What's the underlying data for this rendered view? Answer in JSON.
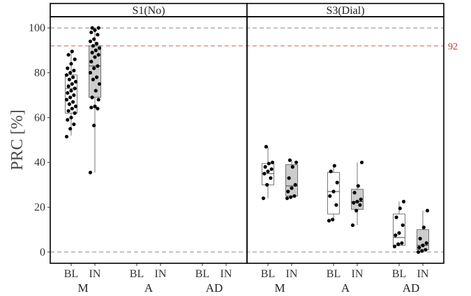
{
  "chart_data": {
    "type": "box",
    "ylabel": "PRC [%]",
    "ylim": [
      -5,
      105
    ],
    "yticks": [
      0,
      20,
      40,
      60,
      80,
      100
    ],
    "reference_lines": [
      {
        "value": 100,
        "style": "dashed",
        "color": "#888888"
      },
      {
        "value": 92,
        "style": "dashed",
        "color": "#d25a5a",
        "label": "92"
      },
      {
        "value": 0,
        "style": "dashed",
        "color": "#888888"
      }
    ],
    "conditions": [
      "BL",
      "IN"
    ],
    "groups": [
      "M",
      "A",
      "AD"
    ],
    "colors": {
      "BL": "#ffffff",
      "IN": "#cccccc",
      "accent": "#b23a3a"
    },
    "panels": [
      {
        "title": "S1(No)",
        "boxes": [
          {
            "group": "M",
            "condition": "BL",
            "whisker_low": 52,
            "q1": 62,
            "median": 73,
            "q3": 79,
            "whisker_high": 90,
            "points": [
              51.5,
              55,
              57,
              59,
              60,
              62,
              63,
              64,
              65,
              66,
              67,
              68,
              69,
              70,
              71,
              72,
              73,
              74,
              75,
              76,
              77,
              78,
              79,
              80,
              81,
              82,
              84,
              86,
              88,
              89.5
            ]
          },
          {
            "group": "M",
            "condition": "IN",
            "whisker_low": 35.5,
            "q1": 69,
            "median": 83,
            "q3": 92,
            "whisker_high": 100,
            "points": [
              35.5,
              56.5,
              64,
              64.5,
              65,
              68,
              69,
              72,
              75,
              77,
              78,
              80,
              82,
              83,
              85,
              87,
              88,
              89,
              90,
              91,
              92,
              93,
              94,
              95,
              97,
              98,
              99,
              100,
              100
            ]
          },
          {
            "group": "A",
            "condition": "BL",
            "points": []
          },
          {
            "group": "A",
            "condition": "IN",
            "points": []
          },
          {
            "group": "AD",
            "condition": "BL",
            "points": []
          },
          {
            "group": "AD",
            "condition": "IN",
            "points": []
          }
        ]
      },
      {
        "title": "S3(Dial)",
        "boxes": [
          {
            "group": "M",
            "condition": "BL",
            "whisker_low": 24,
            "q1": 30,
            "median": 35,
            "q3": 39.5,
            "whisker_high": 47,
            "points": [
              24,
              30,
              33,
              35,
              36,
              37,
              38,
              39.5,
              40,
              47
            ]
          },
          {
            "group": "M",
            "condition": "IN",
            "whisker_low": 24,
            "q1": 25,
            "median": 29.5,
            "q3": 39,
            "whisker_high": 41,
            "points": [
              24,
              24.5,
              25,
              27,
              28.5,
              30,
              33,
              38,
              40,
              41
            ]
          },
          {
            "group": "A",
            "condition": "BL",
            "whisker_low": 14,
            "q1": 17,
            "median": 27,
            "q3": 35.5,
            "whisker_high": 38,
            "points": [
              14,
              14.5,
              21,
              25,
              27,
              31,
              36,
              38.5
            ]
          },
          {
            "group": "A",
            "condition": "IN",
            "whisker_low": 12,
            "q1": 19,
            "median": 22.5,
            "q3": 28,
            "whisker_high": 40,
            "points": [
              12,
              18.5,
              21,
              22,
              22.5,
              23.5,
              26.5,
              29.5,
              40
            ]
          },
          {
            "group": "AD",
            "condition": "BL",
            "whisker_low": 2.5,
            "q1": 3,
            "median": 6.5,
            "q3": 17,
            "whisker_high": 22.5,
            "points": [
              2.5,
              3.5,
              4,
              7.5,
              8.5,
              12,
              15.5,
              19.5,
              22.5
            ]
          },
          {
            "group": "AD",
            "condition": "IN",
            "whisker_low": 0,
            "q1": 1,
            "median": 3,
            "q3": 10,
            "whisker_high": 18.5,
            "points": [
              0,
              0.5,
              1,
              2,
              3,
              4,
              6,
              11,
              18.5
            ]
          }
        ]
      }
    ]
  }
}
